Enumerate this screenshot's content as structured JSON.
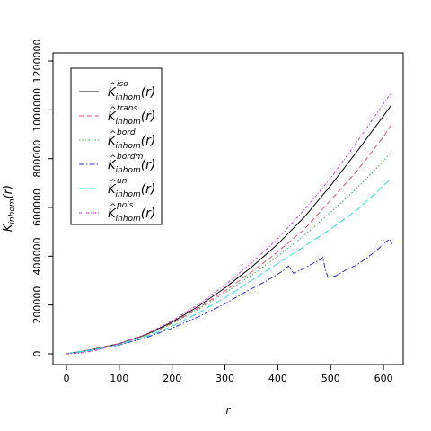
{
  "chart_data": {
    "type": "line",
    "xlabel": "r",
    "ylabel": {
      "base": "K",
      "sub": "inhom",
      "arg": "(r)"
    },
    "xlim": [
      0,
      625
    ],
    "ylim": [
      0,
      1220000
    ],
    "x_ticks": [
      0,
      100,
      200,
      300,
      400,
      500,
      600
    ],
    "y_ticks": [
      0,
      200000,
      400000,
      600000,
      800000,
      1000000,
      1200000
    ],
    "x_tick_labels": [
      "0",
      "100",
      "200",
      "300",
      "400",
      "500",
      "600"
    ],
    "y_tick_labels": [
      "0",
      "200000",
      "400000",
      "600000",
      "800000",
      "1000000",
      "1200000"
    ],
    "grid": false,
    "legend_position": "top-left",
    "legend_base": "K",
    "legend_sub": "inhom",
    "legend_arg": "(r)",
    "series": [
      {
        "name": "iso",
        "color": "#000000",
        "dash": "",
        "points": [
          [
            0,
            0
          ],
          [
            25,
            9000
          ],
          [
            50,
            18000
          ],
          [
            100,
            42000
          ],
          [
            150,
            78000
          ],
          [
            200,
            130000
          ],
          [
            250,
            195000
          ],
          [
            300,
            270000
          ],
          [
            350,
            355000
          ],
          [
            400,
            450000
          ],
          [
            450,
            560000
          ],
          [
            500,
            690000
          ],
          [
            550,
            830000
          ],
          [
            600,
            975000
          ],
          [
            615,
            1020000
          ]
        ]
      },
      {
        "name": "trans",
        "color": "#DF536B",
        "dash": "6,3",
        "points": [
          [
            0,
            0
          ],
          [
            25,
            9000
          ],
          [
            50,
            18000
          ],
          [
            100,
            42000
          ],
          [
            150,
            76000
          ],
          [
            200,
            125000
          ],
          [
            250,
            188000
          ],
          [
            300,
            258000
          ],
          [
            350,
            335000
          ],
          [
            400,
            418000
          ],
          [
            450,
            510000
          ],
          [
            500,
            630000
          ],
          [
            550,
            750000
          ],
          [
            600,
            890000
          ],
          [
            615,
            940000
          ]
        ]
      },
      {
        "name": "bord",
        "color": "#2DB04B",
        "dash": "1.5,2",
        "points": [
          [
            0,
            0
          ],
          [
            25,
            9000
          ],
          [
            50,
            18000
          ],
          [
            100,
            41000
          ],
          [
            150,
            75000
          ],
          [
            200,
            123000
          ],
          [
            250,
            183000
          ],
          [
            300,
            250000
          ],
          [
            350,
            322000
          ],
          [
            400,
            400000
          ],
          [
            450,
            485000
          ],
          [
            500,
            580000
          ],
          [
            550,
            680000
          ],
          [
            600,
            790000
          ],
          [
            615,
            830000
          ]
        ]
      },
      {
        "name": "bordm",
        "color": "#2A2FC9",
        "dash": "6,2,1.5,2",
        "points": [
          [
            0,
            0
          ],
          [
            25,
            7000
          ],
          [
            50,
            15000
          ],
          [
            100,
            36000
          ],
          [
            150,
            66000
          ],
          [
            200,
            105000
          ],
          [
            250,
            152000
          ],
          [
            300,
            205000
          ],
          [
            340,
            255000
          ],
          [
            380,
            300000
          ],
          [
            410,
            340000
          ],
          [
            420,
            360000
          ],
          [
            430,
            330000
          ],
          [
            450,
            350000
          ],
          [
            470,
            375000
          ],
          [
            480,
            385000
          ],
          [
            485,
            395000
          ],
          [
            490,
            345000
          ],
          [
            495,
            312000
          ],
          [
            510,
            320000
          ],
          [
            530,
            345000
          ],
          [
            550,
            365000
          ],
          [
            570,
            395000
          ],
          [
            590,
            430000
          ],
          [
            605,
            460000
          ],
          [
            612,
            470000
          ],
          [
            616,
            450000
          ]
        ]
      },
      {
        "name": "un",
        "color": "#2FE0E8",
        "dash": "8,3",
        "points": [
          [
            0,
            0
          ],
          [
            25,
            8000
          ],
          [
            50,
            16000
          ],
          [
            100,
            38000
          ],
          [
            150,
            70000
          ],
          [
            200,
            113000
          ],
          [
            250,
            168000
          ],
          [
            300,
            230000
          ],
          [
            350,
            300000
          ],
          [
            400,
            370000
          ],
          [
            450,
            440000
          ],
          [
            500,
            512000
          ],
          [
            550,
            590000
          ],
          [
            600,
            690000
          ],
          [
            615,
            720000
          ]
        ]
      },
      {
        "name": "pois",
        "color": "#D62FD6",
        "dash": "3,2,1,2",
        "points": [
          [
            0,
            0
          ],
          [
            25,
            3000
          ],
          [
            50,
            11000
          ],
          [
            100,
            40000
          ],
          [
            150,
            80000
          ],
          [
            200,
            135000
          ],
          [
            250,
            203000
          ],
          [
            300,
            282000
          ],
          [
            350,
            372000
          ],
          [
            400,
            472000
          ],
          [
            450,
            590000
          ],
          [
            500,
            720000
          ],
          [
            550,
            870000
          ],
          [
            600,
            1025000
          ],
          [
            615,
            1070000
          ]
        ]
      }
    ]
  }
}
